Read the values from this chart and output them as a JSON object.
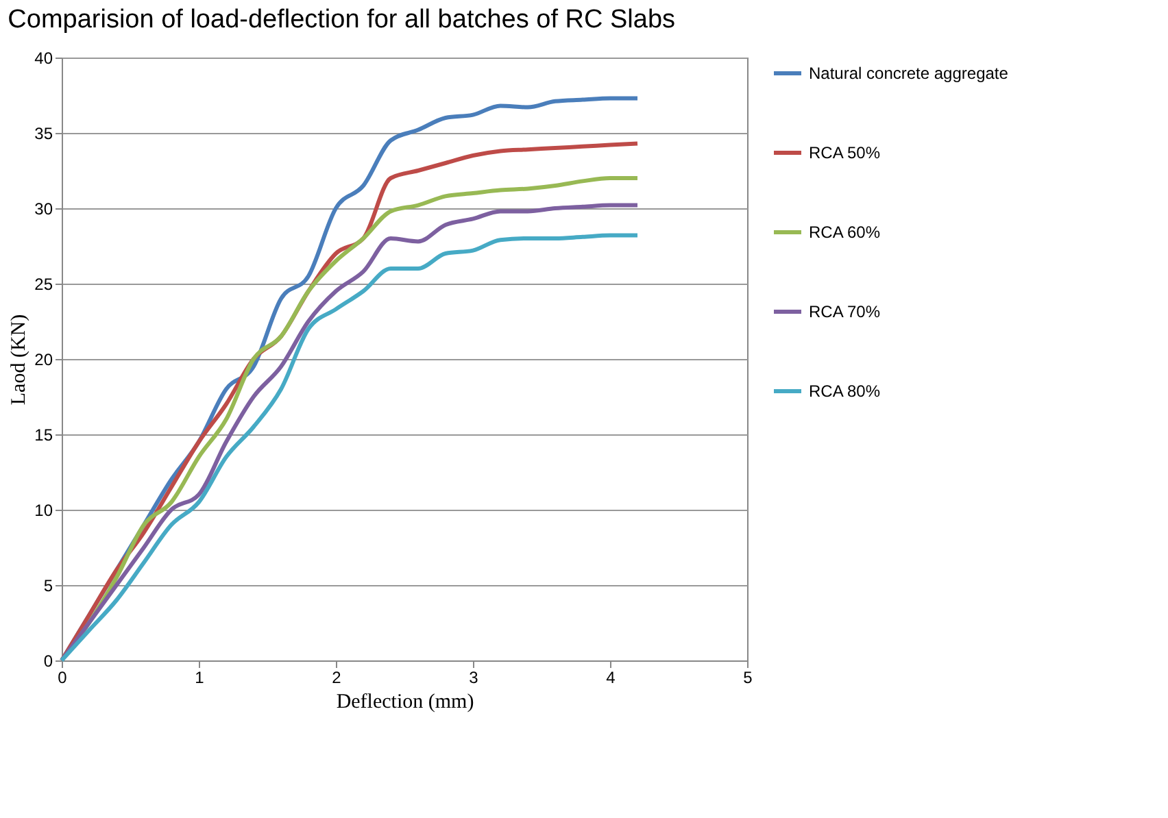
{
  "chart_data": {
    "type": "line",
    "title": "Comparision of load-deflection for all batches of RC Slabs",
    "xlabel": "Deflection (mm)",
    "ylabel": "Laod (KN)",
    "x": [
      0,
      0.2,
      0.4,
      0.6,
      0.8,
      1.0,
      1.2,
      1.4,
      1.6,
      1.8,
      2.0,
      2.2,
      2.4,
      2.6,
      2.8,
      3.0,
      3.2,
      3.4,
      3.6,
      3.8,
      4.0,
      4.2
    ],
    "series": [
      {
        "name": "Natural concrete aggregate",
        "color": "#4a7ebb",
        "values": [
          0,
          3,
          6,
          9,
          12,
          14.5,
          18,
          19.5,
          24,
          25.5,
          30,
          31.5,
          34.5,
          35.2,
          36,
          36.2,
          36.8,
          36.7,
          37.1,
          37.2,
          37.3,
          37.3
        ]
      },
      {
        "name": "RCA 50%",
        "color": "#be4b48",
        "values": [
          0,
          3,
          6,
          8.5,
          11.5,
          14.5,
          17,
          20,
          21.5,
          24.5,
          27,
          28,
          32,
          32.5,
          33,
          33.5,
          33.8,
          33.9,
          34,
          34.1,
          34.2,
          34.3
        ]
      },
      {
        "name": "RCA 60%",
        "color": "#98b954",
        "values": [
          0,
          2.5,
          5.5,
          9,
          10.5,
          13.5,
          16,
          20,
          21.5,
          24.5,
          26.5,
          28,
          29.8,
          30.2,
          30.8,
          31,
          31.2,
          31.3,
          31.5,
          31.8,
          32,
          32
        ]
      },
      {
        "name": "RCA 70%",
        "color": "#7d60a0",
        "values": [
          0,
          2.5,
          5,
          7.5,
          10,
          11,
          14.5,
          17.5,
          19.5,
          22.5,
          24.5,
          25.8,
          28,
          27.8,
          28.9,
          29.3,
          29.8,
          29.8,
          30,
          30.1,
          30.2,
          30.2
        ]
      },
      {
        "name": "RCA 80%",
        "color": "#46aac5",
        "values": [
          0,
          2,
          4,
          6.5,
          9,
          10.5,
          13.5,
          15.5,
          18,
          22,
          23.3,
          24.5,
          26,
          26,
          27,
          27.2,
          27.9,
          28,
          28,
          28.1,
          28.2,
          28.2
        ]
      }
    ],
    "xlim": [
      0,
      5
    ],
    "xticks": [
      0,
      1,
      2,
      3,
      4,
      5
    ],
    "ylim": [
      0,
      40
    ],
    "yticks": [
      0,
      5,
      10,
      15,
      20,
      25,
      30,
      35,
      40
    ],
    "grid": "y",
    "legend": "right",
    "marker": "none",
    "line_style": "solid"
  }
}
